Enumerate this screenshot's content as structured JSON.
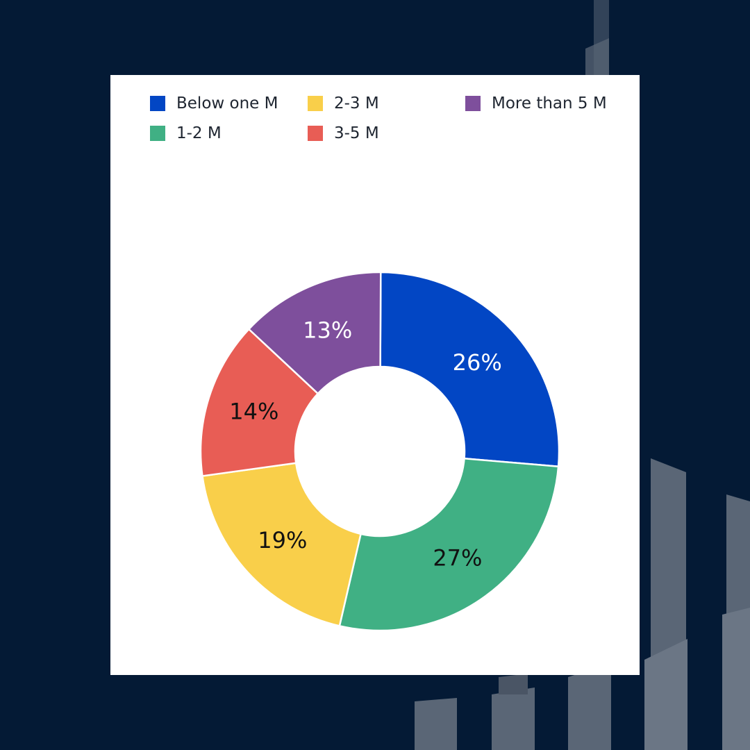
{
  "colors": {
    "background": "#041a35",
    "buildings": "#5a6676",
    "card": "#ffffff"
  },
  "chart_data": {
    "type": "pie",
    "donut": true,
    "title": "",
    "legend_position": "top",
    "slices": [
      {
        "name": "Below one M",
        "value": 26,
        "label": "26%",
        "color": "#0246c4",
        "label_color": "#ffffff"
      },
      {
        "name": "1-2 M",
        "value": 27,
        "label": "27%",
        "color": "#40b084",
        "label_color": "#111111"
      },
      {
        "name": "2-3 M",
        "value": 19,
        "label": "19%",
        "color": "#f9cf4a",
        "label_color": "#111111"
      },
      {
        "name": "3-5 M",
        "value": 14,
        "label": "14%",
        "color": "#e85d55",
        "label_color": "#111111"
      },
      {
        "name": "More than 5 M",
        "value": 13,
        "label": "13%",
        "color": "#7e4f9c",
        "label_color": "#ffffff"
      }
    ]
  }
}
